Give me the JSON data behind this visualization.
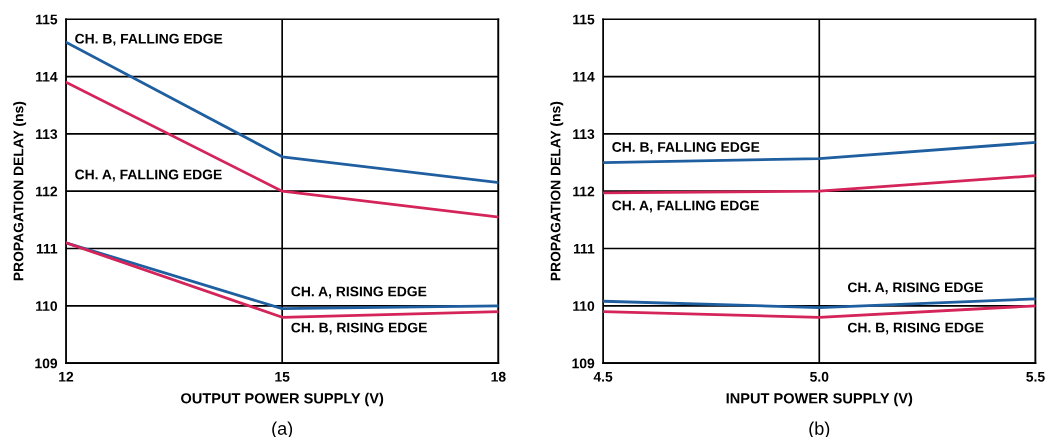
{
  "chart_data": [
    {
      "type": "line",
      "xlabel": "OUTPUT POWER SUPPLY (V)",
      "ylabel": "PROPAGATION DELAY (ns)",
      "x": [
        12,
        15,
        18
      ],
      "xlim": [
        12,
        18
      ],
      "xticks": [
        12,
        15,
        18
      ],
      "ylim": [
        109,
        115
      ],
      "yticks": [
        109,
        110,
        111,
        112,
        113,
        114,
        115
      ],
      "grid": true,
      "legend": false,
      "marker": "none",
      "line_style": "solid",
      "series": [
        {
          "name": "CH. B, FALLING EDGE",
          "color": "#1f5fa0",
          "values": [
            114.6,
            112.6,
            112.15
          ]
        },
        {
          "name": "CH. A, FALLING EDGE",
          "color": "#d4245a",
          "values": [
            113.9,
            112.0,
            111.55
          ]
        },
        {
          "name": "CH. A, RISING EDGE",
          "color": "#1f5fa0",
          "values": [
            111.1,
            109.95,
            110.0
          ]
        },
        {
          "name": "CH. B, RISING EDGE",
          "color": "#d4245a",
          "values": [
            111.1,
            109.8,
            109.9
          ]
        }
      ],
      "annotations": [
        "(a)"
      ]
    },
    {
      "type": "line",
      "xlabel": "INPUT POWER SUPPLY (V)",
      "ylabel": "PROPAGATION DELAY (ns)",
      "x": [
        4.5,
        5.0,
        5.5
      ],
      "xlim": [
        4.5,
        5.5
      ],
      "xticks": [
        4.5,
        {
          "value": 5.0,
          "label": "5.0"
        },
        5.5
      ],
      "ylim": [
        109,
        115
      ],
      "yticks": [
        109,
        110,
        111,
        112,
        113,
        114,
        115
      ],
      "grid": true,
      "legend": false,
      "marker": "none",
      "line_style": "solid",
      "series": [
        {
          "name": "CH. B, FALLING EDGE",
          "color": "#1f5fa0",
          "values": [
            112.5,
            112.57,
            112.85
          ]
        },
        {
          "name": "CH. A, FALLING EDGE",
          "color": "#d4245a",
          "values": [
            111.97,
            112.0,
            112.27
          ]
        },
        {
          "name": "CH. A, RISING EDGE",
          "color": "#1f5fa0",
          "values": [
            110.08,
            109.97,
            110.12
          ]
        },
        {
          "name": "CH. B, RISING EDGE",
          "color": "#d4245a",
          "values": [
            109.9,
            109.8,
            110.0
          ]
        }
      ],
      "annotations": [
        "(b)"
      ]
    }
  ]
}
